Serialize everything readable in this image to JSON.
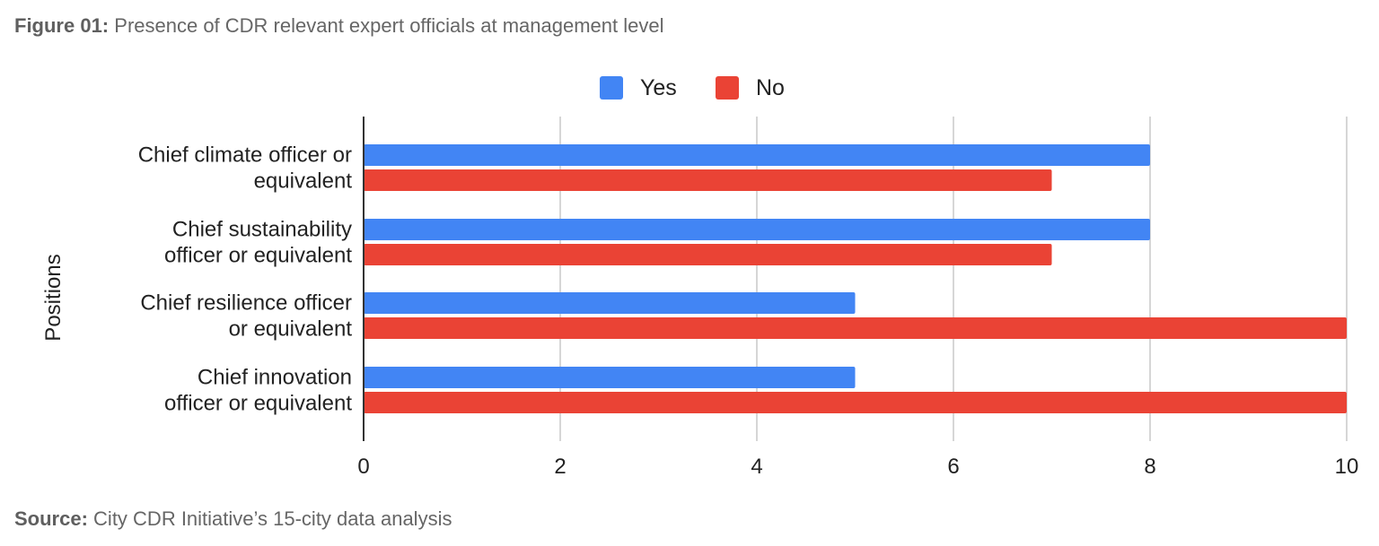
{
  "figure": {
    "label": "Figure 01:",
    "text": "Presence of CDR relevant expert officials at management level"
  },
  "source": {
    "label": "Source:",
    "text": "City CDR Initiative’s 15-city data analysis"
  },
  "chart_data": {
    "type": "bar",
    "orientation": "horizontal",
    "categories": [
      [
        "Chief climate officer or",
        "equivalent"
      ],
      [
        "Chief sustainability",
        "officer or equivalent"
      ],
      [
        "Chief resilience officer",
        "or equivalent"
      ],
      [
        "Chief innovation",
        "officer or equivalent"
      ]
    ],
    "series": [
      {
        "name": "Yes",
        "color": "#4285f4",
        "values": [
          8,
          8,
          5,
          5
        ]
      },
      {
        "name": "No",
        "color": "#ea4335",
        "values": [
          7,
          7,
          10,
          10
        ]
      }
    ],
    "ylabel": "Positions",
    "xlim": [
      0,
      10
    ],
    "xticks": [
      0,
      2,
      4,
      6,
      8,
      10
    ],
    "grid": true,
    "legend_position": "top"
  }
}
